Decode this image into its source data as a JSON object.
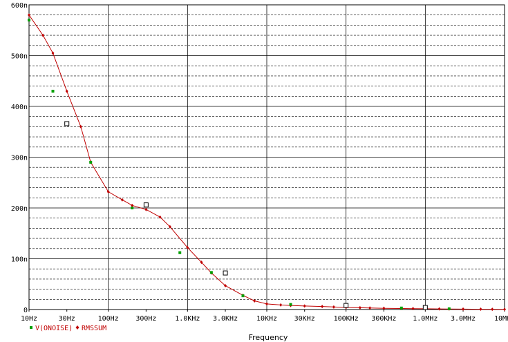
{
  "chart_data": {
    "type": "line",
    "xlabel": "Frequency",
    "ylabel": "",
    "x_scale": "log",
    "xlim": [
      10,
      10000000
    ],
    "ylim": [
      0,
      0.6
    ],
    "grid": true,
    "legend_position": "bottom-left",
    "x_tick_values": [
      10,
      30,
      100,
      300,
      1000,
      3000,
      10000,
      30000,
      100000,
      300000,
      1000000,
      3000000,
      10000000
    ],
    "x_tick_labels": [
      "10Hz",
      "30Hz",
      "100Hz",
      "300Hz",
      "1.0KHz",
      "3.0KHz",
      "10KHz",
      "30KHz",
      "100KHz",
      "300KHz",
      "1.0MHz",
      "3.0MHz",
      "10MHz"
    ],
    "y_tick_values": [
      0,
      0.1,
      0.2,
      0.3,
      0.4,
      0.5,
      0.6
    ],
    "y_tick_labels": [
      "0",
      "100n",
      "200n",
      "300n",
      "400n",
      "500n",
      "600n"
    ],
    "colors": {
      "series1": "#00a000",
      "series2": "#c00000",
      "grid_major": "#000000",
      "grid_minor": "#000000"
    },
    "series": [
      {
        "name": "V(ONOISE)",
        "marker": "square",
        "x": [
          10,
          20,
          60,
          200,
          800,
          2000,
          5000,
          20000,
          100000,
          500000,
          2000000
        ],
        "y": [
          0.57,
          0.43,
          0.29,
          0.2,
          0.112,
          0.073,
          0.027,
          0.01,
          0.007,
          0.003,
          0.0015
        ]
      },
      {
        "name": "RMSSUM",
        "marker": "diamond",
        "x": [
          10,
          15,
          20,
          30,
          45,
          60,
          100,
          150,
          200,
          300,
          450,
          600,
          1000,
          1500,
          2000,
          3000,
          5000,
          7000,
          10000,
          15000,
          20000,
          30000,
          50000,
          70000,
          100000,
          150000,
          200000,
          300000,
          500000,
          700000,
          1000000,
          1500000,
          2000000,
          3000000,
          5000000,
          7000000,
          10000000
        ],
        "y": [
          0.58,
          0.54,
          0.505,
          0.43,
          0.36,
          0.29,
          0.232,
          0.216,
          0.205,
          0.197,
          0.182,
          0.163,
          0.122,
          0.093,
          0.072,
          0.047,
          0.028,
          0.017,
          0.011,
          0.009,
          0.008,
          0.007,
          0.006,
          0.005,
          0.004,
          0.0035,
          0.003,
          0.0025,
          0.002,
          0.0018,
          0.0015,
          0.0012,
          0.001,
          0.0008,
          0.0006,
          0.0005,
          0.0004
        ]
      }
    ],
    "cursors": [
      {
        "x": 30,
        "y": 0.366
      },
      {
        "x": 300,
        "y": 0.206
      },
      {
        "x": 3000,
        "y": 0.072
      },
      {
        "x": 100000,
        "y": 0.008
      },
      {
        "x": 1000000,
        "y": 0.004
      }
    ]
  }
}
